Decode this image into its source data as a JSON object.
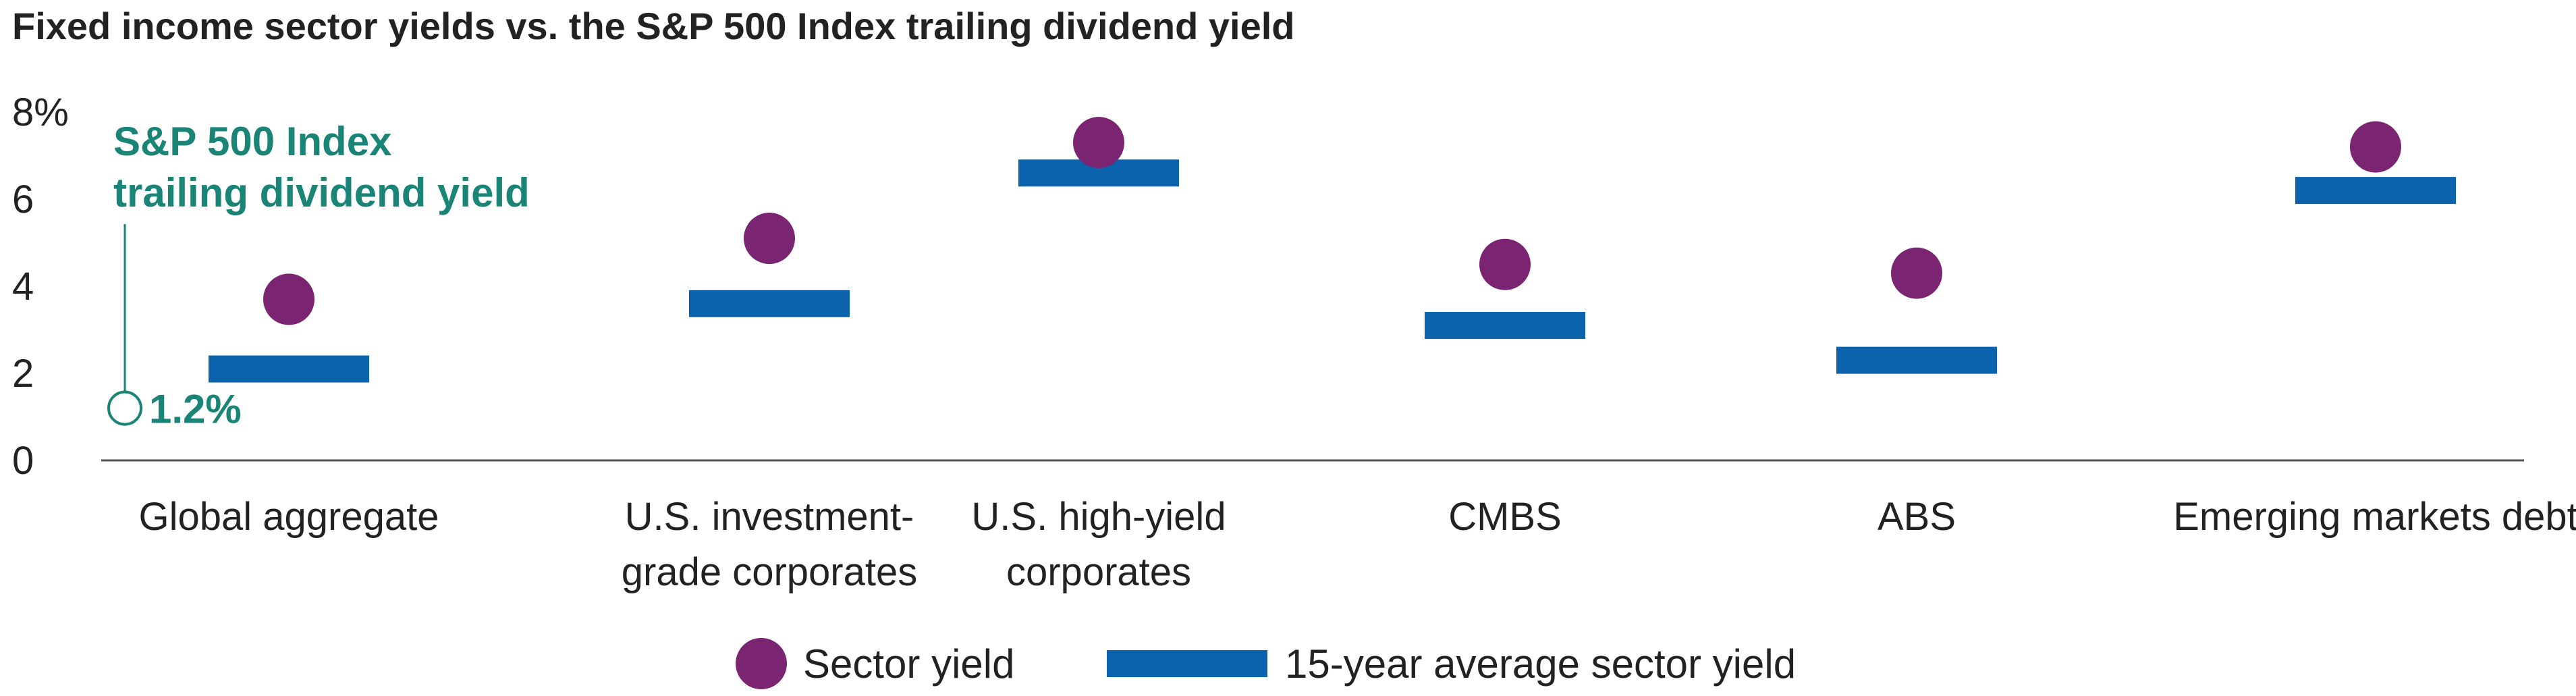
{
  "chart_data": {
    "type": "scatter",
    "title": "Fixed income sector yields vs. the S&P 500 Index trailing dividend yield",
    "ylim": [
      0,
      8
    ],
    "y_ticks": [
      "0",
      "2",
      "4",
      "6",
      "8%"
    ],
    "y_tick_values": [
      0,
      2,
      4,
      6,
      8
    ],
    "categories": [
      [
        "Global aggregate"
      ],
      [
        "U.S. investment-",
        "grade corporates"
      ],
      [
        "U.S. high-yield",
        "corporates"
      ],
      [
        "CMBS"
      ],
      [
        "ABS"
      ],
      [
        "Emerging markets debt"
      ]
    ],
    "series": [
      {
        "name": "Sector yield",
        "marker": "circle",
        "color": "#7b2471",
        "values": [
          3.7,
          5.1,
          7.3,
          4.5,
          4.3,
          7.2
        ]
      },
      {
        "name": "15-year average sector yield",
        "marker": "bar",
        "color": "#0b63ad",
        "values": [
          2.1,
          3.6,
          6.6,
          3.1,
          2.3,
          6.2
        ]
      }
    ],
    "reference": {
      "label_lines": [
        "S&P 500 Index",
        "trailing dividend yield"
      ],
      "value": 1.2,
      "value_label": "1.2%",
      "color": "#1a8576"
    },
    "legend_position": "bottom-center",
    "grid": false
  }
}
